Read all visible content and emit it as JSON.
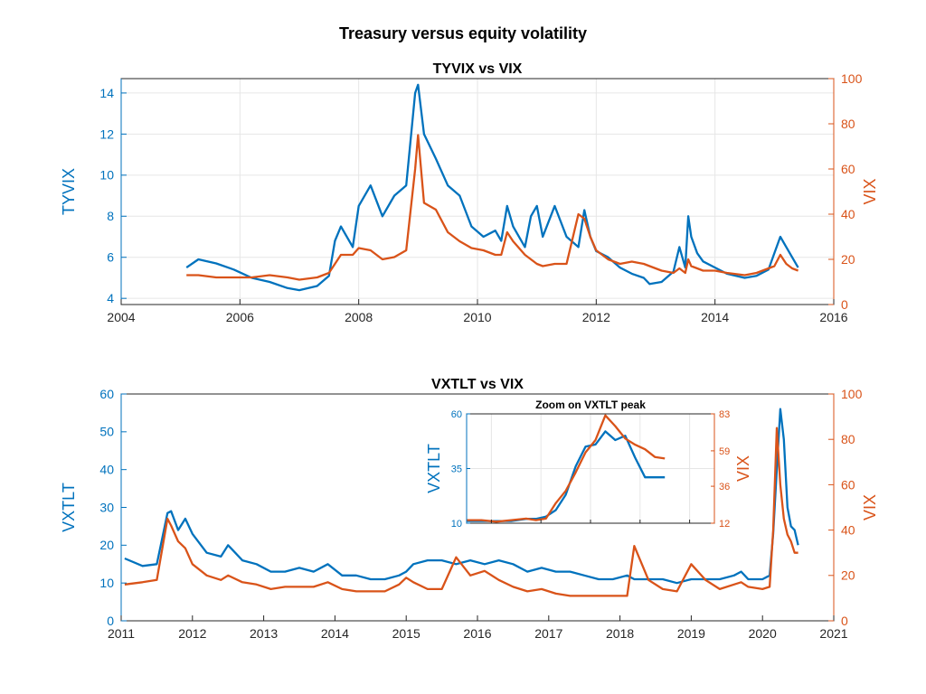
{
  "figure_title": "Treasury versus equity volatility",
  "colors": {
    "left": "#0072BD",
    "right": "#D95319"
  },
  "chart_data": [
    {
      "type": "line",
      "title": "TYVIX vs VIX",
      "xlabel": "",
      "xlim": [
        2004,
        2016
      ],
      "xticks": [
        "2004",
        "2006",
        "2008",
        "2010",
        "2012",
        "2014",
        "2016"
      ],
      "ylabel_left": "TYVIX",
      "ylim_left": [
        3.7,
        14.7
      ],
      "yticks_left": [
        "4",
        "6",
        "8",
        "10",
        "12",
        "14"
      ],
      "ylabel_right": "VIX",
      "ylim_right": [
        0,
        100
      ],
      "yticks_right": [
        "0",
        "20",
        "40",
        "60",
        "80",
        "100"
      ],
      "grid": true,
      "series": [
        {
          "name": "TYVIX",
          "axis": "left",
          "x": [
            2005.1,
            2005.3,
            2005.6,
            2005.9,
            2006.2,
            2006.5,
            2006.8,
            2007.0,
            2007.3,
            2007.5,
            2007.6,
            2007.7,
            2007.9,
            2008.0,
            2008.2,
            2008.4,
            2008.6,
            2008.8,
            2008.95,
            2009.0,
            2009.1,
            2009.3,
            2009.5,
            2009.7,
            2009.9,
            2010.1,
            2010.3,
            2010.4,
            2010.5,
            2010.6,
            2010.8,
            2010.9,
            2011.0,
            2011.1,
            2011.3,
            2011.5,
            2011.7,
            2011.8,
            2011.9,
            2012.0,
            2012.2,
            2012.4,
            2012.6,
            2012.8,
            2012.9,
            2013.1,
            2013.3,
            2013.4,
            2013.5,
            2013.55,
            2013.6,
            2013.7,
            2013.8,
            2014.0,
            2014.2,
            2014.5,
            2014.7,
            2014.9,
            2015.0,
            2015.1,
            2015.2,
            2015.3,
            2015.4
          ],
          "y": [
            5.5,
            5.9,
            5.7,
            5.4,
            5.0,
            4.8,
            4.5,
            4.4,
            4.6,
            5.1,
            6.8,
            7.5,
            6.5,
            8.5,
            9.5,
            8.0,
            9.0,
            9.5,
            14.0,
            14.4,
            12.0,
            10.8,
            9.5,
            9.0,
            7.5,
            7.0,
            7.3,
            6.8,
            8.5,
            7.5,
            6.5,
            8.0,
            8.5,
            7.0,
            8.5,
            7.0,
            6.5,
            8.3,
            7.0,
            6.3,
            6.0,
            5.5,
            5.2,
            5.0,
            4.7,
            4.8,
            5.3,
            6.5,
            5.5,
            8.0,
            7.0,
            6.2,
            5.8,
            5.5,
            5.2,
            5.0,
            5.1,
            5.4,
            6.2,
            7.0,
            6.5,
            6.0,
            5.5
          ]
        },
        {
          "name": "VIX",
          "axis": "right",
          "x": [
            2005.1,
            2005.3,
            2005.6,
            2005.9,
            2006.2,
            2006.5,
            2006.8,
            2007.0,
            2007.3,
            2007.5,
            2007.6,
            2007.7,
            2007.9,
            2008.0,
            2008.2,
            2008.4,
            2008.6,
            2008.8,
            2008.95,
            2009.0,
            2009.1,
            2009.3,
            2009.5,
            2009.7,
            2009.9,
            2010.1,
            2010.3,
            2010.4,
            2010.5,
            2010.6,
            2010.8,
            2010.9,
            2011.0,
            2011.1,
            2011.3,
            2011.5,
            2011.7,
            2011.8,
            2011.9,
            2012.0,
            2012.2,
            2012.4,
            2012.6,
            2012.8,
            2012.9,
            2013.1,
            2013.3,
            2013.4,
            2013.5,
            2013.55,
            2013.6,
            2013.7,
            2013.8,
            2014.0,
            2014.2,
            2014.5,
            2014.7,
            2014.9,
            2015.0,
            2015.1,
            2015.2,
            2015.3,
            2015.4
          ],
          "y": [
            13,
            13,
            12,
            12,
            12,
            13,
            12,
            11,
            12,
            14,
            18,
            22,
            22,
            25,
            24,
            20,
            21,
            24,
            60,
            75,
            45,
            42,
            32,
            28,
            25,
            24,
            22,
            22,
            32,
            28,
            22,
            20,
            18,
            17,
            18,
            18,
            40,
            38,
            30,
            24,
            20,
            18,
            19,
            18,
            17,
            15,
            14,
            16,
            14,
            20,
            17,
            16,
            15,
            15,
            14,
            13,
            14,
            16,
            17,
            22,
            18,
            16,
            15
          ]
        }
      ]
    },
    {
      "type": "line",
      "title": "VXTLT vs VIX",
      "xlabel": "",
      "xlim": [
        2011,
        2021
      ],
      "xticks": [
        "2011",
        "2012",
        "2013",
        "2014",
        "2015",
        "2016",
        "2017",
        "2018",
        "2019",
        "2020",
        "2021"
      ],
      "ylabel_left": "VXTLT",
      "ylim_left": [
        0,
        60
      ],
      "yticks_left": [
        "0",
        "10",
        "20",
        "30",
        "40",
        "50",
        "60"
      ],
      "ylabel_right": "VIX",
      "ylim_right": [
        0,
        100
      ],
      "yticks_right": [
        "0",
        "20",
        "40",
        "60",
        "80",
        "100"
      ],
      "grid": false,
      "series": [
        {
          "name": "VXTLT",
          "axis": "left",
          "x": [
            2011.05,
            2011.3,
            2011.5,
            2011.65,
            2011.7,
            2011.8,
            2011.9,
            2012.0,
            2012.2,
            2012.4,
            2012.5,
            2012.7,
            2012.9,
            2013.1,
            2013.3,
            2013.5,
            2013.7,
            2013.9,
            2014.1,
            2014.3,
            2014.5,
            2014.7,
            2014.9,
            2015.0,
            2015.1,
            2015.3,
            2015.5,
            2015.7,
            2015.9,
            2016.1,
            2016.3,
            2016.5,
            2016.7,
            2016.9,
            2017.1,
            2017.3,
            2017.5,
            2017.7,
            2017.9,
            2018.1,
            2018.2,
            2018.4,
            2018.6,
            2018.8,
            2019.0,
            2019.2,
            2019.4,
            2019.6,
            2019.7,
            2019.8,
            2020.0,
            2020.1,
            2020.15,
            2020.2,
            2020.25,
            2020.3,
            2020.35,
            2020.4,
            2020.45,
            2020.5
          ],
          "y": [
            16.5,
            14.5,
            15,
            28.5,
            29,
            24,
            27,
            23,
            18,
            17,
            20,
            16,
            15,
            13,
            13,
            14,
            13,
            15,
            12,
            12,
            11,
            11,
            12,
            13,
            15,
            16,
            16,
            15,
            16,
            15,
            16,
            15,
            13,
            14,
            13,
            13,
            12,
            11,
            11,
            12,
            11,
            11,
            11,
            10,
            11,
            11,
            11,
            12,
            13,
            11,
            11,
            12,
            23,
            40,
            56,
            48,
            30,
            25,
            24,
            20
          ],
          "zoom": true
        },
        {
          "name": "VIX",
          "axis": "right",
          "x": [
            2011.05,
            2011.3,
            2011.5,
            2011.65,
            2011.7,
            2011.8,
            2011.9,
            2012.0,
            2012.2,
            2012.4,
            2012.5,
            2012.7,
            2012.9,
            2013.1,
            2013.3,
            2013.5,
            2013.7,
            2013.9,
            2014.1,
            2014.3,
            2014.5,
            2014.7,
            2014.9,
            2015.0,
            2015.1,
            2015.3,
            2015.5,
            2015.7,
            2015.9,
            2016.1,
            2016.3,
            2016.5,
            2016.7,
            2016.9,
            2017.1,
            2017.3,
            2017.5,
            2017.7,
            2017.9,
            2018.1,
            2018.2,
            2018.4,
            2018.6,
            2018.8,
            2019.0,
            2019.2,
            2019.4,
            2019.6,
            2019.7,
            2019.8,
            2020.0,
            2020.1,
            2020.15,
            2020.2,
            2020.25,
            2020.3,
            2020.35,
            2020.4,
            2020.45,
            2020.5
          ],
          "y": [
            16,
            17,
            18,
            45,
            42,
            35,
            32,
            25,
            20,
            18,
            20,
            17,
            16,
            14,
            15,
            15,
            15,
            17,
            14,
            13,
            13,
            13,
            16,
            19,
            17,
            14,
            14,
            28,
            20,
            22,
            18,
            15,
            13,
            14,
            12,
            11,
            11,
            11,
            11,
            11,
            33,
            18,
            14,
            13,
            25,
            18,
            14,
            16,
            17,
            15,
            14,
            15,
            40,
            85,
            60,
            45,
            38,
            35,
            30,
            30
          ],
          "zoom": true
        }
      ]
    },
    {
      "type": "line",
      "title": "Zoom on VXTLT peak",
      "xlabel": "",
      "xlim": [
        2020.0,
        2020.5
      ],
      "ylabel_left": "VXTLT",
      "ylim_left": [
        10,
        60
      ],
      "yticks_left": [
        "10",
        "35",
        "60"
      ],
      "ylabel_right": "VIX",
      "ylim_right": [
        12,
        83
      ],
      "yticks_right": [
        "12",
        "36",
        "59",
        "83"
      ],
      "grid": true,
      "series": [
        {
          "name": "VXTLT",
          "axis": "left",
          "x": [
            2020.0,
            2020.03,
            2020.06,
            2020.09,
            2020.12,
            2020.14,
            2020.16,
            2020.18,
            2020.2,
            2020.22,
            2020.24,
            2020.26,
            2020.28,
            2020.3,
            2020.32,
            2020.34,
            2020.36,
            2020.38,
            2020.4
          ],
          "y": [
            11,
            11,
            11,
            11,
            12,
            12,
            13,
            16,
            23,
            36,
            45,
            46,
            52,
            48,
            50,
            40,
            31,
            31,
            31
          ]
        },
        {
          "name": "VIX",
          "axis": "right",
          "x": [
            2020.0,
            2020.03,
            2020.06,
            2020.09,
            2020.12,
            2020.14,
            2020.16,
            2020.18,
            2020.2,
            2020.22,
            2020.24,
            2020.26,
            2020.28,
            2020.3,
            2020.32,
            2020.34,
            2020.36,
            2020.38,
            2020.4
          ],
          "y": [
            14,
            14,
            13,
            14,
            15,
            14,
            15,
            25,
            33,
            45,
            58,
            66,
            82,
            75,
            67,
            63,
            60,
            55,
            54
          ]
        }
      ]
    }
  ]
}
